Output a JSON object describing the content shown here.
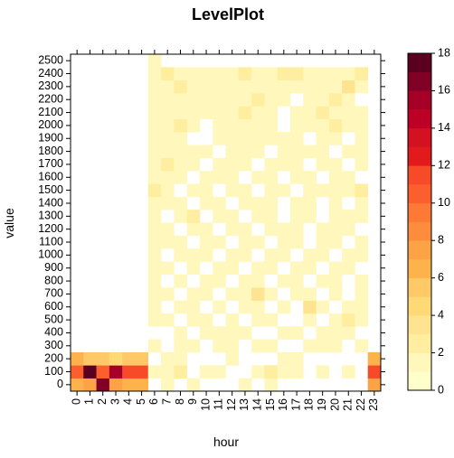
{
  "chart_data": {
    "type": "heatmap",
    "title": "LevelPlot",
    "xlabel": "hour",
    "ylabel": "value",
    "x_categories": [
      "0",
      "1",
      "2",
      "3",
      "4",
      "5",
      "6",
      "7",
      "8",
      "9",
      "10",
      "11",
      "12",
      "13",
      "14",
      "15",
      "16",
      "17",
      "18",
      "19",
      "20",
      "21",
      "22",
      "23"
    ],
    "y_categories": [
      "0",
      "100",
      "200",
      "300",
      "400",
      "500",
      "600",
      "700",
      "800",
      "900",
      "1000",
      "1100",
      "1200",
      "1300",
      "1400",
      "1500",
      "1600",
      "1700",
      "1800",
      "1900",
      "2000",
      "2100",
      "2200",
      "2300",
      "2400",
      "2500"
    ],
    "zlim": [
      0,
      18
    ],
    "colorbar_ticks": [
      "0",
      "2",
      "4",
      "6",
      "8",
      "10",
      "12",
      "14",
      "16",
      "18"
    ],
    "colorbar_levels": [
      "#FFFFCC",
      "#FFF7BC",
      "#FFEDA0",
      "#FEE391",
      "#FED976",
      "#FEC966",
      "#FEB24C",
      "#FDA346",
      "#FD8D3C",
      "#FC7A36",
      "#FC5E2D",
      "#F74A28",
      "#E31A1C",
      "#D31121",
      "#BD0026",
      "#A60026",
      "#800026",
      "#5C0020"
    ],
    "matrix": [
      [
        6,
        7,
        16,
        7,
        6,
        6,
        0,
        1,
        0,
        1,
        0,
        0,
        0,
        1,
        0,
        1,
        0,
        0,
        0,
        0,
        0,
        0,
        0,
        7
      ],
      [
        10,
        17,
        10,
        15,
        11,
        11,
        1,
        1,
        2,
        0,
        1,
        1,
        0,
        0,
        1,
        2,
        1,
        1,
        0,
        1,
        0,
        1,
        0,
        11
      ],
      [
        6,
        5,
        5,
        4,
        5,
        5,
        0,
        1,
        1,
        0,
        0,
        0,
        1,
        0,
        0,
        0,
        1,
        1,
        0,
        0,
        0,
        0,
        0,
        6
      ],
      [
        0,
        0,
        0,
        0,
        0,
        0,
        1,
        0,
        1,
        1,
        0,
        1,
        1,
        0,
        1,
        1,
        0,
        0,
        1,
        1,
        1,
        0,
        1,
        0
      ],
      [
        0,
        0,
        0,
        0,
        0,
        0,
        0,
        0,
        1,
        0,
        1,
        1,
        1,
        1,
        0,
        0,
        1,
        1,
        0,
        1,
        1,
        1,
        0,
        0
      ],
      [
        0,
        0,
        0,
        0,
        0,
        0,
        1,
        1,
        0,
        1,
        1,
        0,
        1,
        0,
        1,
        1,
        0,
        0,
        1,
        0,
        1,
        2,
        1,
        0
      ],
      [
        0,
        0,
        0,
        0,
        0,
        0,
        1,
        0,
        1,
        1,
        0,
        1,
        0,
        1,
        1,
        0,
        1,
        0,
        3,
        1,
        0,
        1,
        1,
        0
      ],
      [
        0,
        0,
        0,
        0,
        0,
        0,
        1,
        1,
        0,
        1,
        1,
        0,
        1,
        1,
        3,
        1,
        0,
        1,
        1,
        0,
        1,
        0,
        1,
        0
      ],
      [
        0,
        0,
        0,
        0,
        0,
        0,
        1,
        0,
        1,
        0,
        1,
        1,
        0,
        1,
        1,
        0,
        1,
        1,
        0,
        1,
        1,
        0,
        1,
        0
      ],
      [
        0,
        0,
        0,
        0,
        0,
        0,
        1,
        1,
        0,
        1,
        0,
        1,
        1,
        0,
        1,
        1,
        0,
        1,
        1,
        0,
        1,
        1,
        0,
        0
      ],
      [
        0,
        0,
        0,
        0,
        0,
        0,
        1,
        0,
        1,
        1,
        1,
        0,
        1,
        1,
        0,
        1,
        1,
        0,
        1,
        1,
        0,
        1,
        1,
        0
      ],
      [
        0,
        0,
        0,
        0,
        0,
        0,
        1,
        1,
        1,
        0,
        1,
        1,
        0,
        1,
        1,
        0,
        1,
        1,
        0,
        1,
        1,
        0,
        1,
        0
      ],
      [
        0,
        0,
        0,
        0,
        0,
        0,
        1,
        1,
        0,
        1,
        1,
        0,
        1,
        1,
        0,
        1,
        1,
        1,
        0,
        1,
        1,
        1,
        0,
        0
      ],
      [
        0,
        0,
        0,
        0,
        0,
        0,
        1,
        0,
        1,
        2,
        0,
        1,
        1,
        0,
        1,
        1,
        0,
        1,
        1,
        0,
        1,
        1,
        1,
        0
      ],
      [
        0,
        0,
        0,
        0,
        0,
        0,
        1,
        1,
        1,
        0,
        1,
        1,
        0,
        1,
        1,
        1,
        0,
        1,
        1,
        0,
        1,
        0,
        1,
        0
      ],
      [
        0,
        0,
        0,
        0,
        0,
        0,
        2,
        1,
        0,
        1,
        1,
        0,
        1,
        1,
        0,
        1,
        1,
        0,
        1,
        1,
        1,
        1,
        2,
        0
      ],
      [
        0,
        0,
        0,
        0,
        0,
        0,
        1,
        1,
        1,
        0,
        1,
        1,
        1,
        0,
        1,
        1,
        0,
        1,
        1,
        0,
        1,
        1,
        0,
        0
      ],
      [
        0,
        0,
        0,
        0,
        0,
        0,
        1,
        2,
        1,
        1,
        0,
        1,
        1,
        1,
        0,
        1,
        1,
        1,
        0,
        1,
        1,
        0,
        1,
        0
      ],
      [
        0,
        0,
        0,
        0,
        0,
        0,
        1,
        1,
        1,
        1,
        1,
        0,
        1,
        1,
        1,
        0,
        1,
        1,
        1,
        1,
        0,
        1,
        1,
        0
      ],
      [
        0,
        0,
        0,
        0,
        0,
        0,
        1,
        1,
        1,
        0,
        0,
        1,
        1,
        1,
        1,
        1,
        1,
        1,
        0,
        1,
        1,
        0,
        1,
        0
      ],
      [
        0,
        0,
        0,
        0,
        0,
        0,
        1,
        1,
        2,
        1,
        0,
        1,
        1,
        1,
        1,
        1,
        0,
        1,
        1,
        1,
        2,
        1,
        1,
        0
      ],
      [
        0,
        0,
        0,
        0,
        0,
        0,
        1,
        1,
        1,
        1,
        1,
        1,
        1,
        2,
        1,
        1,
        0,
        1,
        1,
        2,
        1,
        1,
        1,
        0
      ],
      [
        0,
        0,
        0,
        0,
        0,
        0,
        1,
        1,
        1,
        1,
        1,
        1,
        1,
        1,
        2,
        1,
        1,
        0,
        1,
        1,
        2,
        1,
        0,
        0
      ],
      [
        0,
        0,
        0,
        0,
        0,
        0,
        1,
        1,
        2,
        1,
        1,
        1,
        1,
        1,
        1,
        1,
        1,
        1,
        1,
        1,
        1,
        3,
        1,
        0
      ],
      [
        0,
        0,
        0,
        0,
        0,
        0,
        1,
        2,
        1,
        1,
        1,
        1,
        1,
        2,
        1,
        1,
        2,
        2,
        1,
        1,
        1,
        1,
        2,
        0
      ],
      [
        0,
        0,
        0,
        0,
        0,
        0,
        1,
        0,
        0,
        0,
        0,
        0,
        0,
        0,
        0,
        0,
        0,
        0,
        0,
        0,
        0,
        0,
        0,
        0
      ]
    ]
  }
}
